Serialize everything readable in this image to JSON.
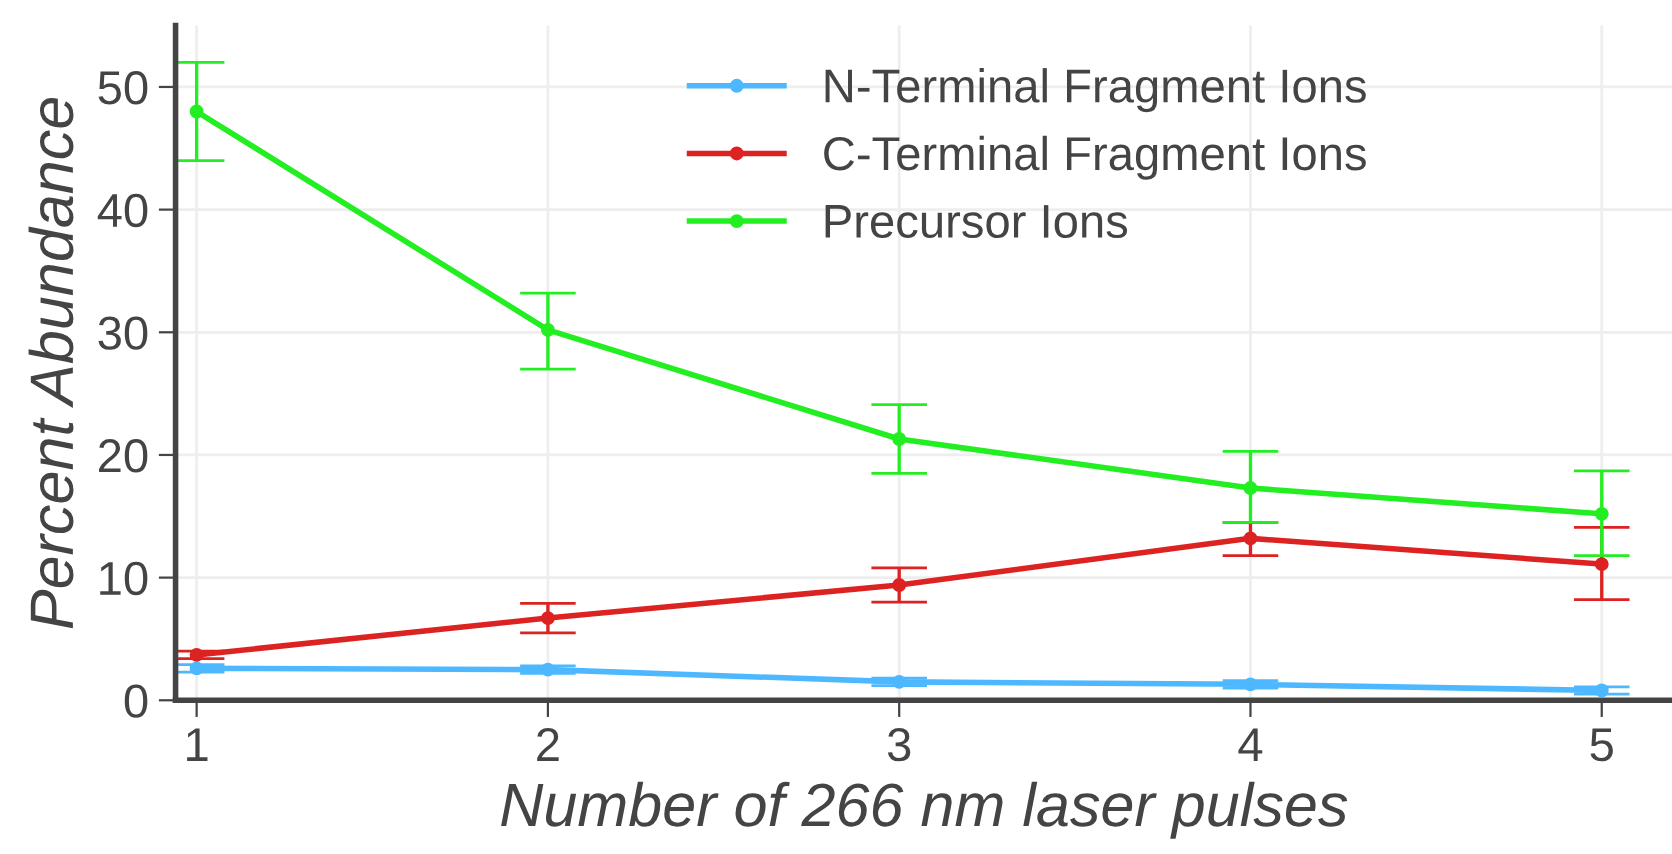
{
  "chart_data": {
    "type": "line",
    "xlabel": "Number of 266 nm laser pulses",
    "ylabel": "Percent Abundance",
    "x": [
      1,
      2,
      3,
      4,
      5
    ],
    "series": [
      {
        "name": "N-Terminal Fragment Ions",
        "color": "#4db8ff",
        "values": [
          2.6,
          2.5,
          1.5,
          1.3,
          0.8
        ],
        "errors": [
          0.3,
          0.3,
          0.3,
          0.3,
          0.3
        ]
      },
      {
        "name": "C-Terminal Fragment Ions",
        "color": "#dd2222",
        "values": [
          3.7,
          6.7,
          9.4,
          13.2,
          11.1
        ],
        "errors": [
          0.3,
          [
            5.5,
            7.9
          ],
          [
            8.0,
            10.8
          ],
          [
            11.8,
            14.5
          ],
          [
            8.2,
            14.1
          ]
        ]
      },
      {
        "name": "Precursor Ions",
        "color": "#22ee22",
        "values": [
          48,
          30.2,
          21.3,
          17.3,
          15.2
        ],
        "errors": [
          [
            44,
            52
          ],
          [
            27,
            33.2
          ],
          [
            18.5,
            24.1
          ],
          [
            14.5,
            20.3
          ],
          [
            11.8,
            18.7
          ]
        ]
      }
    ],
    "xlim": [
      0.94,
      5.2
    ],
    "ylim": [
      0,
      55
    ],
    "xticks": [
      1,
      2,
      3,
      4,
      5
    ],
    "yticks": [
      0,
      10,
      20,
      30,
      40,
      50
    ],
    "grid": true,
    "legend": "top",
    "marker": "circle",
    "line_style": "solid"
  }
}
